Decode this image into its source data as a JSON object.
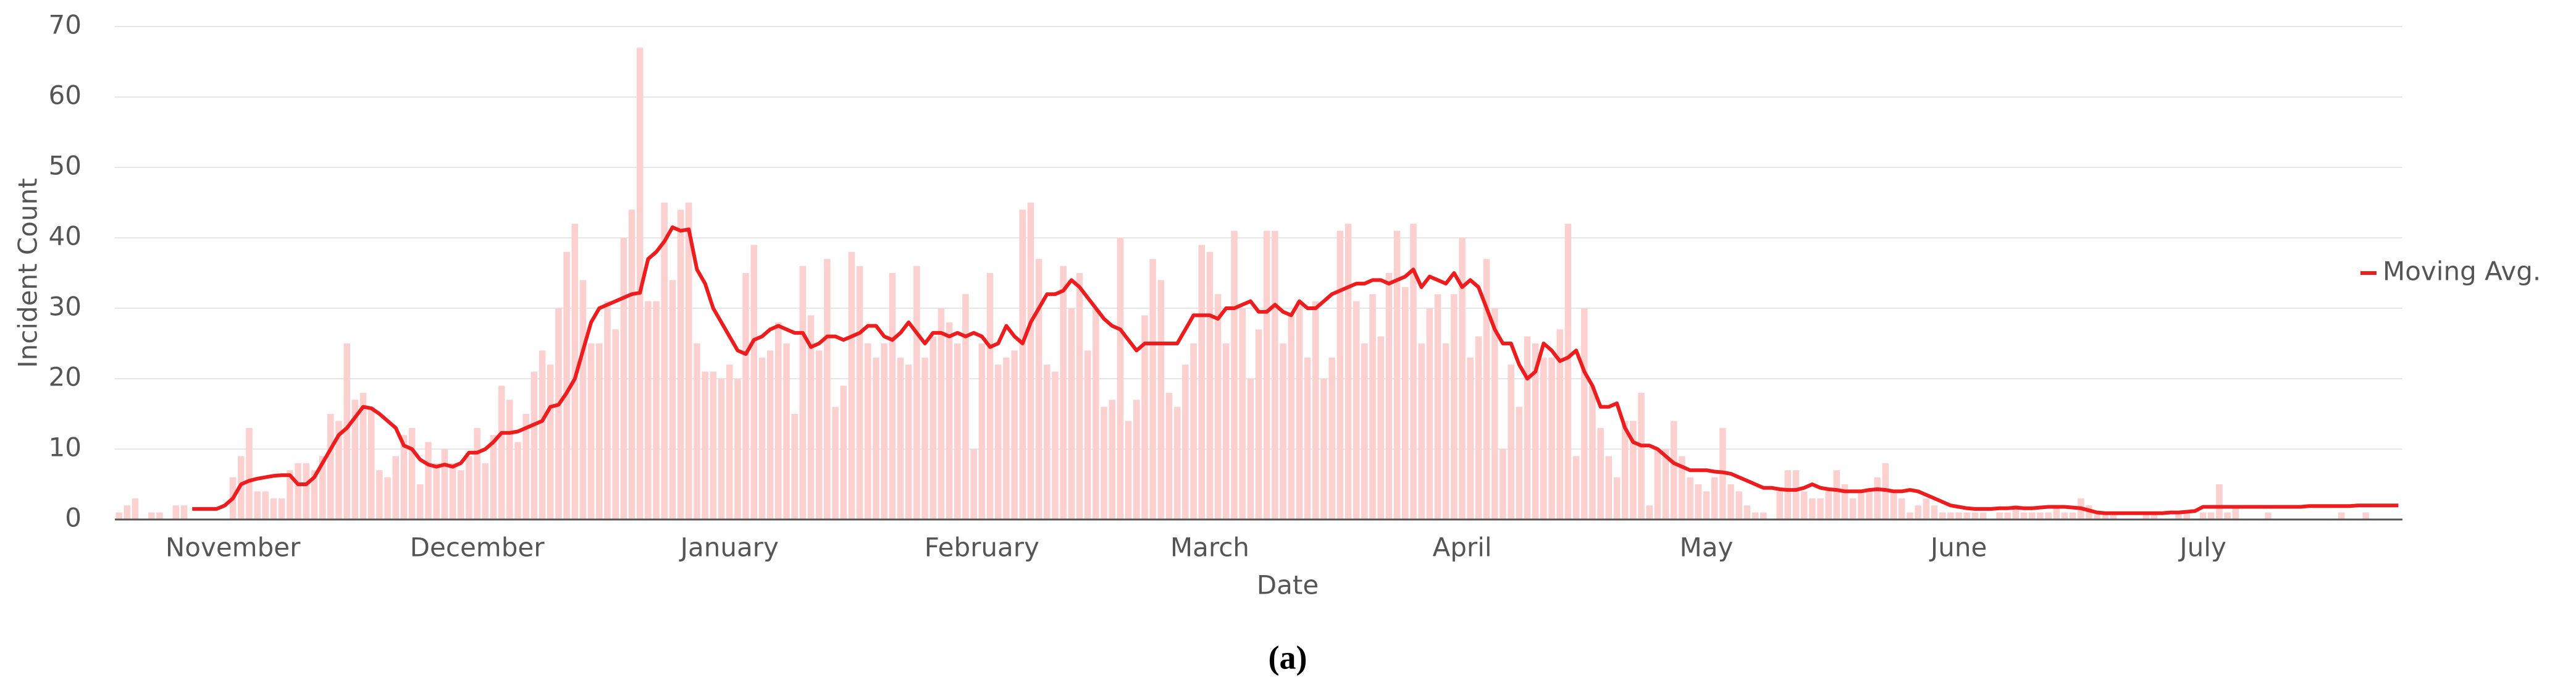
{
  "chart_data": {
    "type": "bar",
    "xlabel": "Date",
    "ylabel": "Incident Count",
    "caption": "(a)",
    "ylim": [
      0,
      70
    ],
    "yticks": [
      0,
      10,
      20,
      30,
      40,
      50,
      60,
      70
    ],
    "grid": true,
    "legend": "right",
    "categories": [
      null,
      null,
      null,
      null,
      null,
      null,
      null,
      null,
      null,
      null,
      null,
      null,
      null,
      null,
      "November",
      null,
      null,
      null,
      null,
      null,
      null,
      null,
      null,
      null,
      null,
      null,
      null,
      null,
      null,
      null,
      null,
      null,
      null,
      null,
      null,
      null,
      null,
      null,
      null,
      null,
      null,
      null,
      null,
      null,
      "December",
      null,
      null,
      null,
      null,
      null,
      null,
      null,
      null,
      null,
      null,
      null,
      null,
      null,
      null,
      null,
      null,
      null,
      null,
      null,
      null,
      null,
      null,
      null,
      null,
      null,
      null,
      null,
      null,
      null,
      null,
      "January",
      null,
      null,
      null,
      null,
      null,
      null,
      null,
      null,
      null,
      null,
      null,
      null,
      null,
      null,
      null,
      null,
      null,
      null,
      null,
      null,
      null,
      null,
      null,
      null,
      null,
      null,
      null,
      null,
      null,
      null,
      "February",
      null,
      null,
      null,
      null,
      null,
      null,
      null,
      null,
      null,
      null,
      null,
      null,
      null,
      null,
      null,
      null,
      null,
      null,
      null,
      null,
      null,
      null,
      null,
      null,
      null,
      null,
      null,
      "March",
      null,
      null,
      null,
      null,
      null,
      null,
      null,
      null,
      null,
      null,
      null,
      null,
      null,
      null,
      null,
      null,
      null,
      null,
      null,
      null,
      null,
      null,
      null,
      null,
      null,
      null,
      null,
      null,
      null,
      null,
      "April",
      null,
      null,
      null,
      null,
      null,
      null,
      null,
      null,
      null,
      null,
      null,
      null,
      null,
      null,
      null,
      null,
      null,
      null,
      null,
      null,
      null,
      null,
      null,
      null,
      null,
      null,
      null,
      null,
      null,
      "May",
      null,
      null,
      null,
      null,
      null,
      null,
      null,
      null,
      null,
      null,
      null,
      null,
      null,
      null,
      null,
      null,
      null,
      null,
      null,
      null,
      null,
      null,
      null,
      null,
      null,
      null,
      null,
      null,
      null,
      null,
      "June",
      null,
      null,
      null,
      null,
      null,
      null,
      null,
      null,
      null,
      null,
      null,
      null,
      null,
      null,
      null,
      null,
      null,
      null,
      null,
      null,
      null,
      null,
      null,
      null,
      null,
      null,
      null,
      null,
      null,
      "July",
      null,
      null,
      null,
      null,
      null,
      null,
      null,
      null,
      null,
      null,
      null,
      null,
      null,
      null,
      null,
      null,
      null,
      null,
      null,
      null,
      null,
      null,
      null,
      null
    ],
    "series": [
      {
        "type": "bar",
        "color": "#fdd0d0",
        "values": [
          1,
          2,
          3,
          0,
          1,
          1,
          0,
          2,
          2,
          0,
          0,
          0,
          0,
          0,
          6,
          9,
          13,
          4,
          4,
          3,
          3,
          7,
          8,
          8,
          7,
          9,
          15,
          14,
          25,
          17,
          18,
          16,
          7,
          6,
          9,
          12,
          13,
          5,
          11,
          8,
          10,
          8,
          7,
          9,
          13,
          8,
          12,
          19,
          17,
          11,
          15,
          21,
          24,
          22,
          30,
          38,
          42,
          34,
          25,
          25,
          31,
          27,
          40,
          44,
          67,
          31,
          31,
          45,
          34,
          44,
          45,
          25,
          21,
          21,
          20,
          22,
          20,
          35,
          39,
          23,
          24,
          28,
          25,
          15,
          36,
          29,
          24,
          37,
          16,
          19,
          38,
          36,
          25,
          23,
          25,
          35,
          23,
          22,
          36,
          23,
          26,
          30,
          28,
          25,
          32,
          10,
          25,
          35,
          22,
          23,
          24,
          44,
          45,
          37,
          22,
          21,
          36,
          30,
          35,
          24,
          30,
          16,
          17,
          40,
          14,
          17,
          29,
          37,
          34,
          18,
          16,
          22,
          25,
          39,
          38,
          32,
          25,
          41,
          30,
          20,
          27,
          41,
          41,
          25,
          29,
          31,
          23,
          31,
          20,
          23,
          41,
          42,
          31,
          25,
          32,
          26,
          35,
          41,
          33,
          42,
          25,
          30,
          32,
          25,
          32,
          40,
          23,
          26,
          37,
          30,
          10,
          22,
          16,
          26,
          25,
          23,
          23,
          27,
          42,
          9,
          30,
          19,
          13,
          9,
          6,
          14,
          14,
          18,
          2,
          10,
          10,
          14,
          9,
          6,
          5,
          4,
          6,
          13,
          5,
          4,
          2,
          1,
          1,
          0,
          4,
          7,
          7,
          4,
          3,
          3,
          4,
          7,
          5,
          3,
          4,
          4,
          6,
          8,
          4,
          3,
          1,
          2,
          3,
          2,
          1,
          1,
          1,
          1,
          1,
          1,
          0,
          1,
          1,
          2,
          1,
          1,
          1,
          1,
          2,
          1,
          1,
          3,
          2,
          1,
          1,
          1,
          0,
          0,
          0,
          1,
          1,
          0,
          0,
          1,
          1,
          0,
          1,
          1,
          5,
          1,
          2,
          0,
          0,
          0,
          1,
          0,
          0,
          0,
          0,
          0,
          0,
          0,
          0,
          1,
          0,
          0,
          1,
          0,
          0,
          0,
          0
        ]
      },
      {
        "type": "line",
        "name": "Moving Avg.",
        "color": "#ee1c1c",
        "values": [
          null,
          null,
          null,
          null,
          null,
          null,
          null,
          null,
          null,
          1.5,
          1.5,
          1.5,
          1.5,
          2,
          3,
          5,
          5.5,
          5.8,
          6,
          6.2,
          6.3,
          6.3,
          5,
          5,
          6,
          8,
          10,
          12,
          13,
          14.5,
          16,
          15.8,
          15,
          14,
          13,
          10.5,
          10,
          8.5,
          7.8,
          7.5,
          7.8,
          7.5,
          8,
          9.5,
          9.5,
          10,
          11,
          12.3,
          12.3,
          12.5,
          13,
          13.5,
          14,
          16,
          16.3,
          18,
          20,
          24,
          28,
          30,
          30.5,
          31,
          31.5,
          32,
          32.2,
          37,
          38,
          39.5,
          41.5,
          41,
          41.2,
          35.5,
          33.5,
          30,
          28,
          26,
          24,
          23.5,
          25.5,
          26,
          27,
          27.5,
          27,
          26.5,
          26.5,
          24.5,
          25,
          26,
          26,
          25.5,
          26,
          26.5,
          27.5,
          27.5,
          26,
          25.5,
          26.5,
          28,
          26.5,
          25,
          26.5,
          26.5,
          26,
          26.5,
          26,
          26.5,
          26,
          24.5,
          25,
          27.5,
          26,
          25,
          28,
          30,
          32,
          32,
          32.5,
          34,
          33,
          31.5,
          30,
          28.5,
          27.5,
          27,
          25.5,
          24,
          25,
          25,
          25,
          25,
          25,
          27,
          29,
          29,
          29,
          28.5,
          30,
          30,
          30.5,
          31,
          29.5,
          29.5,
          30.5,
          29.5,
          29,
          31,
          30,
          30,
          31,
          32,
          32.5,
          33,
          33.5,
          33.5,
          34,
          34,
          33.5,
          34,
          34.5,
          35.5,
          33,
          34.5,
          34,
          33.5,
          35,
          33,
          34,
          33,
          30,
          27,
          25,
          25,
          22,
          20,
          21,
          25,
          24,
          22.5,
          23,
          24,
          21,
          19,
          16,
          16,
          16.5,
          13,
          11,
          10.5,
          10.5,
          10,
          9,
          8,
          7.5,
          7,
          7,
          7,
          6.8,
          6.7,
          6.5,
          6,
          5.5,
          5,
          4.5,
          4.5,
          4.3,
          4.2,
          4.2,
          4.5,
          5,
          4.5,
          4.3,
          4.2,
          4,
          4,
          4,
          4.2,
          4.3,
          4.2,
          4,
          4,
          4.2,
          4,
          3.5,
          3,
          2.5,
          2,
          1.8,
          1.6,
          1.5,
          1.5,
          1.5,
          1.6,
          1.6,
          1.7,
          1.6,
          1.6,
          1.7,
          1.8,
          1.8,
          1.8,
          1.7,
          1.6,
          1.3,
          1,
          0.9,
          0.9,
          0.9,
          0.9,
          0.9,
          0.9,
          0.9,
          0.9,
          1,
          1,
          1.1,
          1.2,
          1.8,
          1.8,
          1.8,
          1.8,
          1.8,
          1.8,
          1.8,
          1.8,
          1.8,
          1.8,
          1.8,
          1.8,
          1.8,
          1.9,
          1.9,
          1.9,
          1.9,
          1.9,
          1.9,
          2,
          2,
          2,
          2,
          2,
          2
        ]
      }
    ]
  }
}
